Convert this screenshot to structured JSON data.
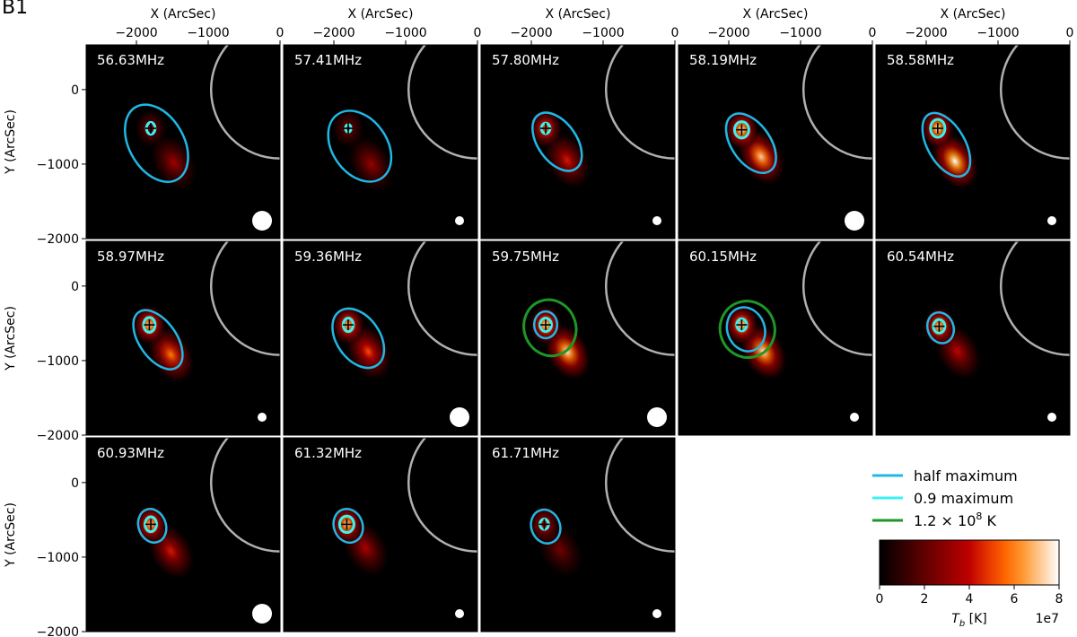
{
  "figure_label": "B1",
  "chart_data": {
    "type": "heatmap",
    "description_units": {
      "x": "X (ArcSec)",
      "y": "Y (ArcSec)"
    },
    "xlabel": "X (ArcSec)",
    "ylabel": "Y (ArcSec)",
    "xlim": [
      -2700,
      0
    ],
    "ylim": [
      -2000,
      600
    ],
    "xticks": [
      -2000,
      -1000,
      0
    ],
    "xtick_labels": [
      "−2000",
      "−1000",
      "0"
    ],
    "yticks": [
      0,
      -1000,
      -2000
    ],
    "ytick_labels": [
      "0",
      "−1000",
      "−2000"
    ],
    "solar_limb_radius": 960,
    "colorbar": {
      "label": "T_b [K]",
      "label_display": "Tb [K]",
      "label_main": "T",
      "label_sub": "b",
      "label_unit": " [K]",
      "ticks": [
        0,
        2,
        4,
        6,
        8
      ],
      "tick_labels": [
        "0",
        "2",
        "4",
        "6",
        "8"
      ],
      "multiplier": "1e7",
      "range": [
        0,
        8
      ],
      "colormap": "gist_heat"
    },
    "legend": {
      "placement": "lower-right",
      "entries": [
        {
          "label": "half maximum",
          "color": "#1fb8e6"
        },
        {
          "label": "0.9 maximum",
          "color": "#3ef0f0"
        },
        {
          "label_prefix": "1.2 × 10",
          "label_sup": "8",
          "label_suffix": " K",
          "label": "1.2 × 10^8 K",
          "color": "#1e9628"
        }
      ]
    },
    "panels": [
      {
        "freq": "56.63MHz",
        "peak": [
          -1800,
          -520
        ],
        "tail": [
          -1480,
          -980
        ],
        "peak_int": 0.35,
        "tail_int": 0.42,
        "half_max": [
          -1720,
          -720,
          380,
          560,
          30
        ],
        "p90": [
          -1800,
          -520,
          60,
          80,
          0
        ],
        "k12": null,
        "beam": "large"
      },
      {
        "freq": "57.41MHz",
        "peak": [
          -1800,
          -520
        ],
        "tail": [
          -1480,
          -1000
        ],
        "peak_int": 0.33,
        "tail_int": 0.4,
        "half_max": [
          -1640,
          -760,
          380,
          520,
          35
        ],
        "p90": [
          -1800,
          -520,
          40,
          50,
          0
        ],
        "k12": [
          -1800,
          -520,
          40,
          50,
          0
        ],
        "beam": "small"
      },
      {
        "freq": "57.80MHz",
        "peak": [
          -1800,
          -520
        ],
        "tail": [
          -1500,
          -950
        ],
        "peak_int": 0.75,
        "tail_int": 0.55,
        "half_max": [
          -1640,
          -700,
          270,
          440,
          35
        ],
        "p90": [
          -1800,
          -520,
          60,
          70,
          0
        ],
        "k12": null,
        "beam": "small"
      },
      {
        "freq": "58.19MHz",
        "peak": [
          -1820,
          -540
        ],
        "tail": [
          -1550,
          -900
        ],
        "peak_int": 1.0,
        "tail_int": 0.9,
        "half_max": [
          -1690,
          -720,
          270,
          450,
          35
        ],
        "p90": [
          -1820,
          -540,
          100,
          110,
          0
        ],
        "k12": null,
        "beam": "large"
      },
      {
        "freq": "58.58MHz",
        "peak": [
          -1840,
          -520
        ],
        "tail": [
          -1600,
          -960
        ],
        "peak_int": 1.0,
        "tail_int": 1.0,
        "half_max": [
          -1720,
          -740,
          260,
          470,
          30
        ],
        "p90": [
          -1840,
          -520,
          100,
          120,
          0
        ],
        "k12": [
          -1840,
          -520,
          100,
          120,
          0
        ],
        "beam": "small"
      },
      {
        "freq": "58.97MHz",
        "peak": [
          -1820,
          -520
        ],
        "tail": [
          -1520,
          -920
        ],
        "peak_int": 0.95,
        "tail_int": 0.75,
        "half_max": [
          -1700,
          -720,
          260,
          450,
          35
        ],
        "p90": [
          -1820,
          -520,
          80,
          100,
          0
        ],
        "k12": null,
        "beam": "small"
      },
      {
        "freq": "59.36MHz",
        "peak": [
          -1800,
          -520
        ],
        "tail": [
          -1520,
          -880
        ],
        "peak_int": 0.9,
        "tail_int": 0.65,
        "half_max": [
          -1660,
          -700,
          300,
          440,
          35
        ],
        "p90": [
          -1800,
          -520,
          70,
          90,
          0
        ],
        "k12": null,
        "beam": "large"
      },
      {
        "freq": "59.75MHz",
        "peak": [
          -1800,
          -520
        ],
        "tail": [
          -1500,
          -880
        ],
        "peak_int": 1.0,
        "tail_int": 0.95,
        "half_max": [
          -1800,
          -520,
          160,
          180,
          0
        ],
        "p90": [
          -1800,
          -520,
          80,
          90,
          0
        ],
        "k12": [
          -1740,
          -560,
          360,
          380,
          20
        ],
        "beam": "large"
      },
      {
        "freq": "60.15MHz",
        "peak": [
          -1820,
          -520
        ],
        "tail": [
          -1520,
          -880
        ],
        "peak_int": 1.0,
        "tail_int": 0.95,
        "half_max": [
          -1760,
          -580,
          260,
          300,
          20
        ],
        "p90": [
          -1820,
          -520,
          70,
          80,
          0
        ],
        "k12": [
          -1740,
          -580,
          380,
          380,
          20
        ],
        "beam": "small"
      },
      {
        "freq": "60.54MHz",
        "peak": [
          -1820,
          -540
        ],
        "tail": [
          -1560,
          -880
        ],
        "peak_int": 0.95,
        "tail_int": 0.5,
        "half_max": [
          -1800,
          -560,
          180,
          210,
          20
        ],
        "p90": [
          -1820,
          -540,
          80,
          90,
          0
        ],
        "k12": [
          -1820,
          -540,
          80,
          90,
          0
        ],
        "beam": "small"
      },
      {
        "freq": "60.93MHz",
        "peak": [
          -1800,
          -560
        ],
        "tail": [
          -1520,
          -920
        ],
        "peak_int": 0.9,
        "tail_int": 0.55,
        "half_max": [
          -1780,
          -580,
          190,
          230,
          20
        ],
        "p90": [
          -1800,
          -560,
          80,
          100,
          0
        ],
        "k12": null,
        "beam": "large"
      },
      {
        "freq": "61.32MHz",
        "peak": [
          -1820,
          -560
        ],
        "tail": [
          -1560,
          -880
        ],
        "peak_int": 0.95,
        "tail_int": 0.45,
        "half_max": [
          -1800,
          -580,
          200,
          230,
          20
        ],
        "p90": [
          -1820,
          -560,
          100,
          110,
          0
        ],
        "k12": [
          -1820,
          -560,
          100,
          110,
          0
        ],
        "beam": "small"
      },
      {
        "freq": "61.71MHz",
        "peak": [
          -1820,
          -560
        ],
        "tail": [
          -1600,
          -900
        ],
        "peak_int": 0.55,
        "tail_int": 0.3,
        "half_max": [
          -1800,
          -590,
          200,
          230,
          20
        ],
        "p90": [
          -1820,
          -560,
          60,
          70,
          0
        ],
        "k12": null,
        "beam": "small"
      }
    ]
  }
}
